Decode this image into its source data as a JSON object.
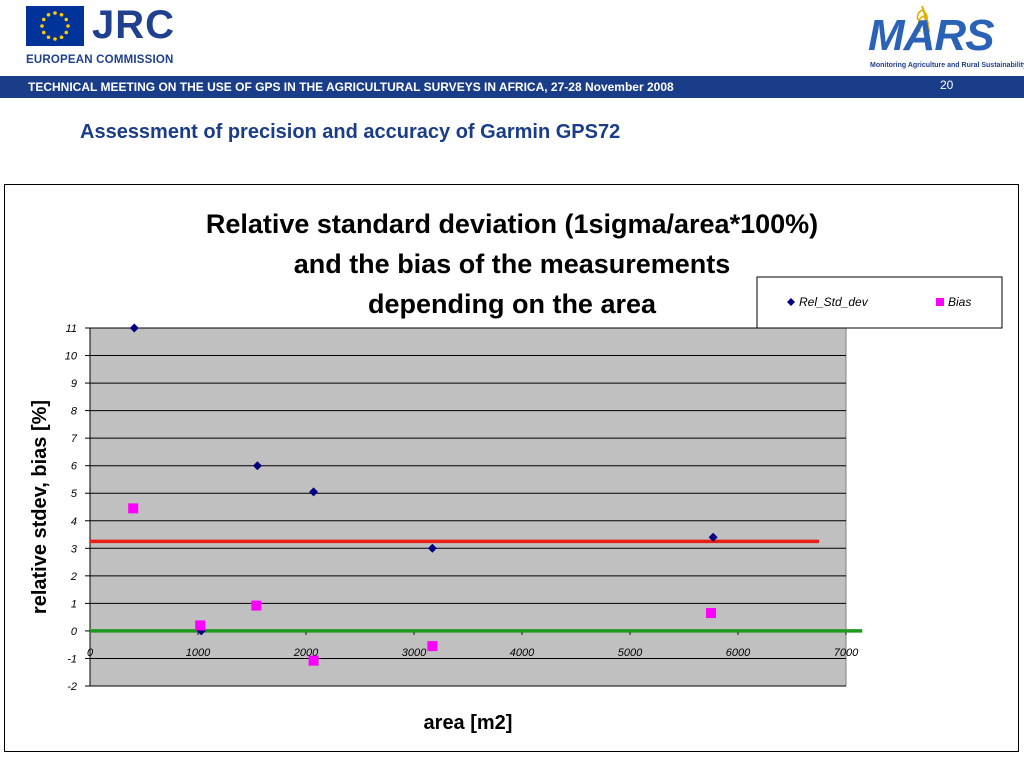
{
  "header": {
    "org_short": "JRC",
    "org_full": "EUROPEAN COMMISSION",
    "partner_logo": "MARS",
    "partner_tagline": "Monitoring Agriculture and Rural Sustainability",
    "banner_text": "TECHNICAL MEETING ON THE USE OF GPS IN THE AGRICULTURAL SURVEYS IN AFRICA, 27-28 November 2008",
    "page_number": "20"
  },
  "slide": {
    "title": "Assessment of precision and accuracy of Garmin GPS72"
  },
  "colors": {
    "banner": "#1a3d8a",
    "plot_area": "#c0c0c0",
    "rel_std_dev": "#000080",
    "bias": "#ff00ff",
    "mean_line": "#e8201a",
    "zero_line": "#1f9a1f"
  },
  "chart_data": {
    "type": "scatter",
    "title_lines": [
      "Relative standard deviation (1sigma/area*100%)",
      "and the bias of the measurements",
      "depending on the area"
    ],
    "xlabel": "area [m2]",
    "ylabel": "relative stdev, bias [%]",
    "xlim": [
      0,
      7000
    ],
    "ylim": [
      -2,
      11
    ],
    "x_ticks": [
      "0",
      "1000",
      "2000",
      "3000",
      "4000",
      "5000",
      "6000",
      "7000"
    ],
    "y_ticks": [
      "11",
      "10",
      "9",
      "8",
      "7",
      "6",
      "5",
      "4",
      "3",
      "2",
      "1",
      "0",
      "-1",
      "-2"
    ],
    "grid": "horizontal",
    "legend_position": "top-right",
    "series": [
      {
        "name": "Rel_Std_dev",
        "marker": "diamond",
        "color": "#000080",
        "points": [
          [
            410,
            11.0
          ],
          [
            1030,
            0.0
          ],
          [
            1550,
            6.0
          ],
          [
            2070,
            5.05
          ],
          [
            3170,
            3.0
          ],
          [
            5770,
            3.4
          ]
        ]
      },
      {
        "name": "Bias",
        "marker": "square",
        "color": "#ff00ff",
        "points": [
          [
            400,
            4.45
          ],
          [
            1020,
            0.2
          ],
          [
            1540,
            0.92
          ],
          [
            2070,
            -1.08
          ],
          [
            3170,
            -0.55
          ],
          [
            5750,
            0.65
          ]
        ]
      }
    ],
    "reference_lines": [
      {
        "color": "#e8201a",
        "y": 3.25,
        "x_range": [
          0,
          6750
        ]
      },
      {
        "color": "#1f9a1f",
        "y": 0.0,
        "x_range": [
          0,
          7150
        ]
      }
    ]
  }
}
